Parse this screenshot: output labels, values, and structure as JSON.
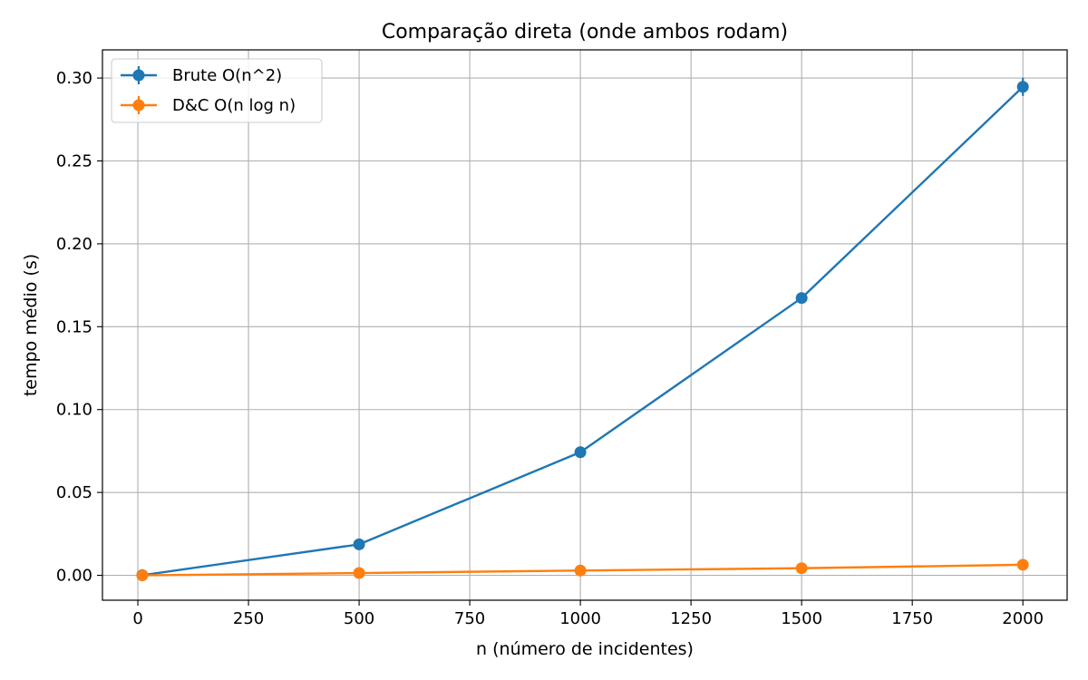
{
  "chart_data": {
    "type": "line",
    "title": "Comparação direta (onde ambos rodam)",
    "xlabel": "n (número de incidentes)",
    "ylabel": "tempo médio (s)",
    "xlim": [
      -80,
      2100
    ],
    "ylim": [
      -0.015,
      0.317
    ],
    "xticks": [
      0,
      250,
      500,
      750,
      1000,
      1250,
      1500,
      1750,
      2000
    ],
    "xtick_labels": [
      "0",
      "250",
      "500",
      "750",
      "1000",
      "1250",
      "1500",
      "1750",
      "2000"
    ],
    "yticks": [
      0.0,
      0.05,
      0.1,
      0.15,
      0.2,
      0.25,
      0.3
    ],
    "ytick_labels": [
      "0.00",
      "0.05",
      "0.10",
      "0.15",
      "0.20",
      "0.25",
      "0.30"
    ],
    "grid": true,
    "legend_position": "top-left",
    "x": [
      10,
      500,
      1000,
      1500,
      2000
    ],
    "series": [
      {
        "name": "Brute O(n^2)",
        "color": "#1f77b4",
        "values": [
          0.0001,
          0.0187,
          0.0743,
          0.1673,
          0.2947
        ],
        "errors": [
          0.0,
          0.0008,
          0.0015,
          0.002,
          0.0055
        ]
      },
      {
        "name": "D&C O(n log n)",
        "color": "#ff7f0e",
        "values": [
          0.0,
          0.0014,
          0.0029,
          0.0043,
          0.0064
        ],
        "errors": [
          0.0,
          0.0001,
          0.0001,
          0.0002,
          0.0003
        ]
      }
    ]
  }
}
